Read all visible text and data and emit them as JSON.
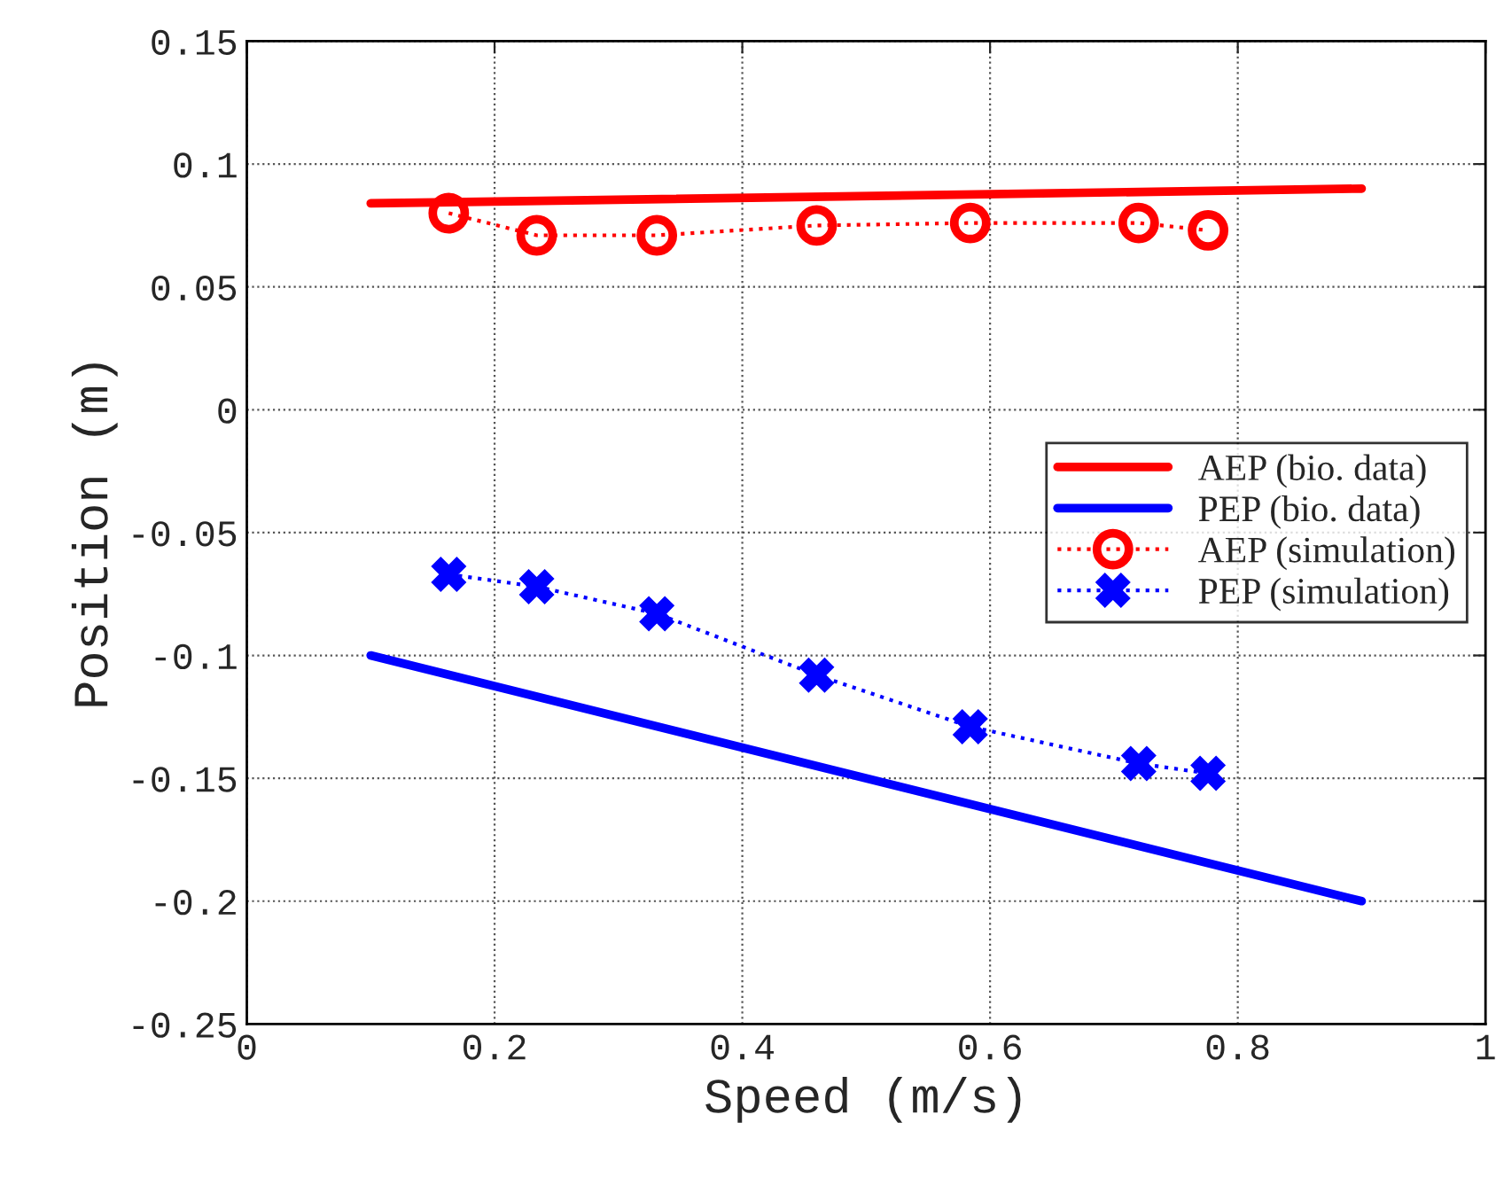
{
  "chart_data": {
    "type": "line",
    "xlabel": "Speed (m/s)",
    "ylabel": "Position (m)",
    "xlim": [
      0,
      1
    ],
    "xticks": [
      0,
      0.2,
      0.4,
      0.6,
      0.8,
      1
    ],
    "ylim": [
      -0.25,
      0.15
    ],
    "yticks": [
      -0.25,
      -0.2,
      -0.15,
      -0.1,
      -0.05,
      0,
      0.05,
      0.1,
      0.15
    ],
    "grid": true,
    "legend": "right",
    "series": [
      {
        "name": "AEP (bio. data)",
        "color": "#ff0000",
        "x": [
          0.1,
          0.9
        ],
        "values": [
          0.084,
          0.09
        ],
        "marker": "none",
        "line_style": "solid"
      },
      {
        "name": "PEP (bio. data)",
        "color": "#0000ff",
        "x": [
          0.1,
          0.9
        ],
        "values": [
          -0.1,
          -0.2
        ],
        "marker": "none",
        "line_style": "solid"
      },
      {
        "name": "AEP (simulation)",
        "color": "#ff0000",
        "x": [
          0.163,
          0.234,
          0.331,
          0.46,
          0.584,
          0.72,
          0.776
        ],
        "values": [
          0.08,
          0.071,
          0.071,
          0.075,
          0.076,
          0.076,
          0.073
        ],
        "marker": "circle",
        "line_style": "dotted"
      },
      {
        "name": "PEP (simulation)",
        "color": "#0000ff",
        "x": [
          0.163,
          0.234,
          0.331,
          0.46,
          0.584,
          0.72,
          0.776
        ],
        "values": [
          -0.067,
          -0.072,
          -0.083,
          -0.108,
          -0.129,
          -0.144,
          -0.148
        ],
        "marker": "cross",
        "line_style": "dotted"
      }
    ]
  }
}
